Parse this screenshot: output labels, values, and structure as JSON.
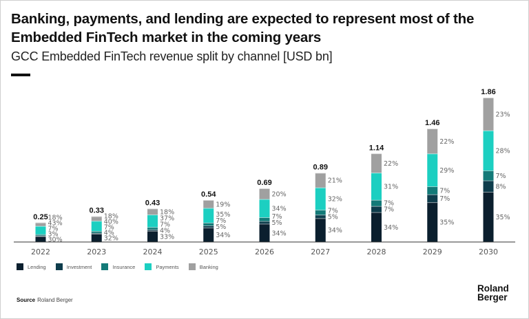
{
  "header": {
    "title": "Banking, payments, and lending are expected to represent most of the Embedded FinTech market in the coming years",
    "subtitle": "GCC Embedded FinTech revenue split by channel [USD bn]"
  },
  "footer": {
    "source_label": "Source",
    "source_text": "Roland Berger",
    "logo_line1": "Roland",
    "logo_line2": "Berger"
  },
  "chart_data": {
    "type": "bar",
    "stacked": true,
    "title": "GCC Embedded FinTech revenue split by channel [USD bn]",
    "xlabel": "",
    "ylabel": "USD bn",
    "ylim": [
      0,
      1.86
    ],
    "grid": false,
    "legend_position": "bottom-left",
    "categories": [
      "2022",
      "2023",
      "2024",
      "2025",
      "2026",
      "2027",
      "2028",
      "2029",
      "2030"
    ],
    "totals": [
      0.25,
      0.33,
      0.43,
      0.54,
      0.69,
      0.89,
      1.14,
      1.46,
      1.86
    ],
    "total_labels": [
      "0.25",
      "0.33",
      "0.43",
      "0.54",
      "0.69",
      "0.89",
      "1.14",
      "1.46",
      "1.86"
    ],
    "series": [
      {
        "name": "Lending",
        "color": "#0b1f2e",
        "values_pct": [
          30,
          32,
          33,
          34,
          34,
          34,
          34,
          35,
          35
        ]
      },
      {
        "name": "Investment",
        "color": "#0e3d4c",
        "values_pct": [
          3,
          4,
          4,
          5,
          5,
          5,
          7,
          7,
          8
        ]
      },
      {
        "name": "Insurance",
        "color": "#137a78",
        "values_pct": [
          7,
          7,
          7,
          7,
          7,
          7,
          7,
          7,
          7
        ]
      },
      {
        "name": "Payments",
        "color": "#1ccfc1",
        "values_pct": [
          43,
          40,
          37,
          35,
          34,
          32,
          31,
          29,
          28
        ]
      },
      {
        "name": "Banking",
        "color": "#a0a0a0",
        "values_pct": [
          18,
          18,
          18,
          19,
          20,
          21,
          22,
          22,
          23
        ]
      }
    ]
  }
}
